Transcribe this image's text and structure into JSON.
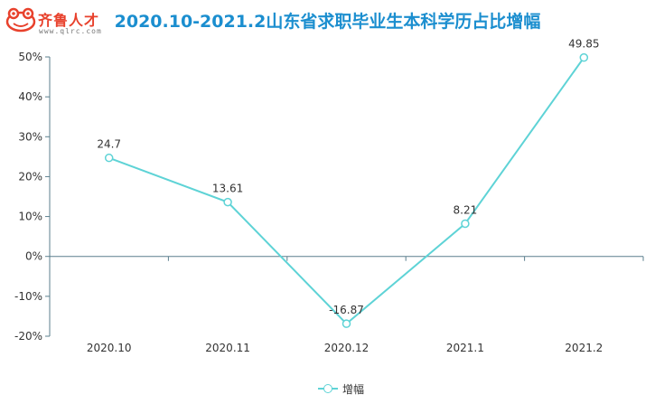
{
  "header": {
    "brand_name": "齐鲁人才",
    "brand_url": "www.qlrc.com",
    "title": "2020.10-2021.2山东省求职毕业生本科学历占比增幅"
  },
  "colors": {
    "line": "#5ed3d6",
    "title": "#1b8ecf",
    "logo": "#e8412c",
    "axis": "#5b7f8e"
  },
  "chart_data": {
    "type": "line",
    "title": "2020.10-2021.2山东省求职毕业生本科学历占比增幅",
    "categories": [
      "2020.10",
      "2020.11",
      "2020.12",
      "2021.1",
      "2021.2"
    ],
    "series": [
      {
        "name": "增幅",
        "values": [
          24.7,
          13.61,
          -16.87,
          8.21,
          49.85
        ],
        "labels": [
          "24.7",
          "13.61",
          "-16.87",
          "8.21",
          "49.85"
        ]
      }
    ],
    "ylim": [
      -20,
      50
    ],
    "yticks": [
      -20,
      -10,
      0,
      10,
      20,
      30,
      40,
      50
    ],
    "ytick_labels": [
      "-20%",
      "-10%",
      "0%",
      "10%",
      "20%",
      "30%",
      "40%",
      "50%"
    ],
    "xlabel": "",
    "ylabel": "",
    "grid": false,
    "legend": "bottom-center"
  }
}
